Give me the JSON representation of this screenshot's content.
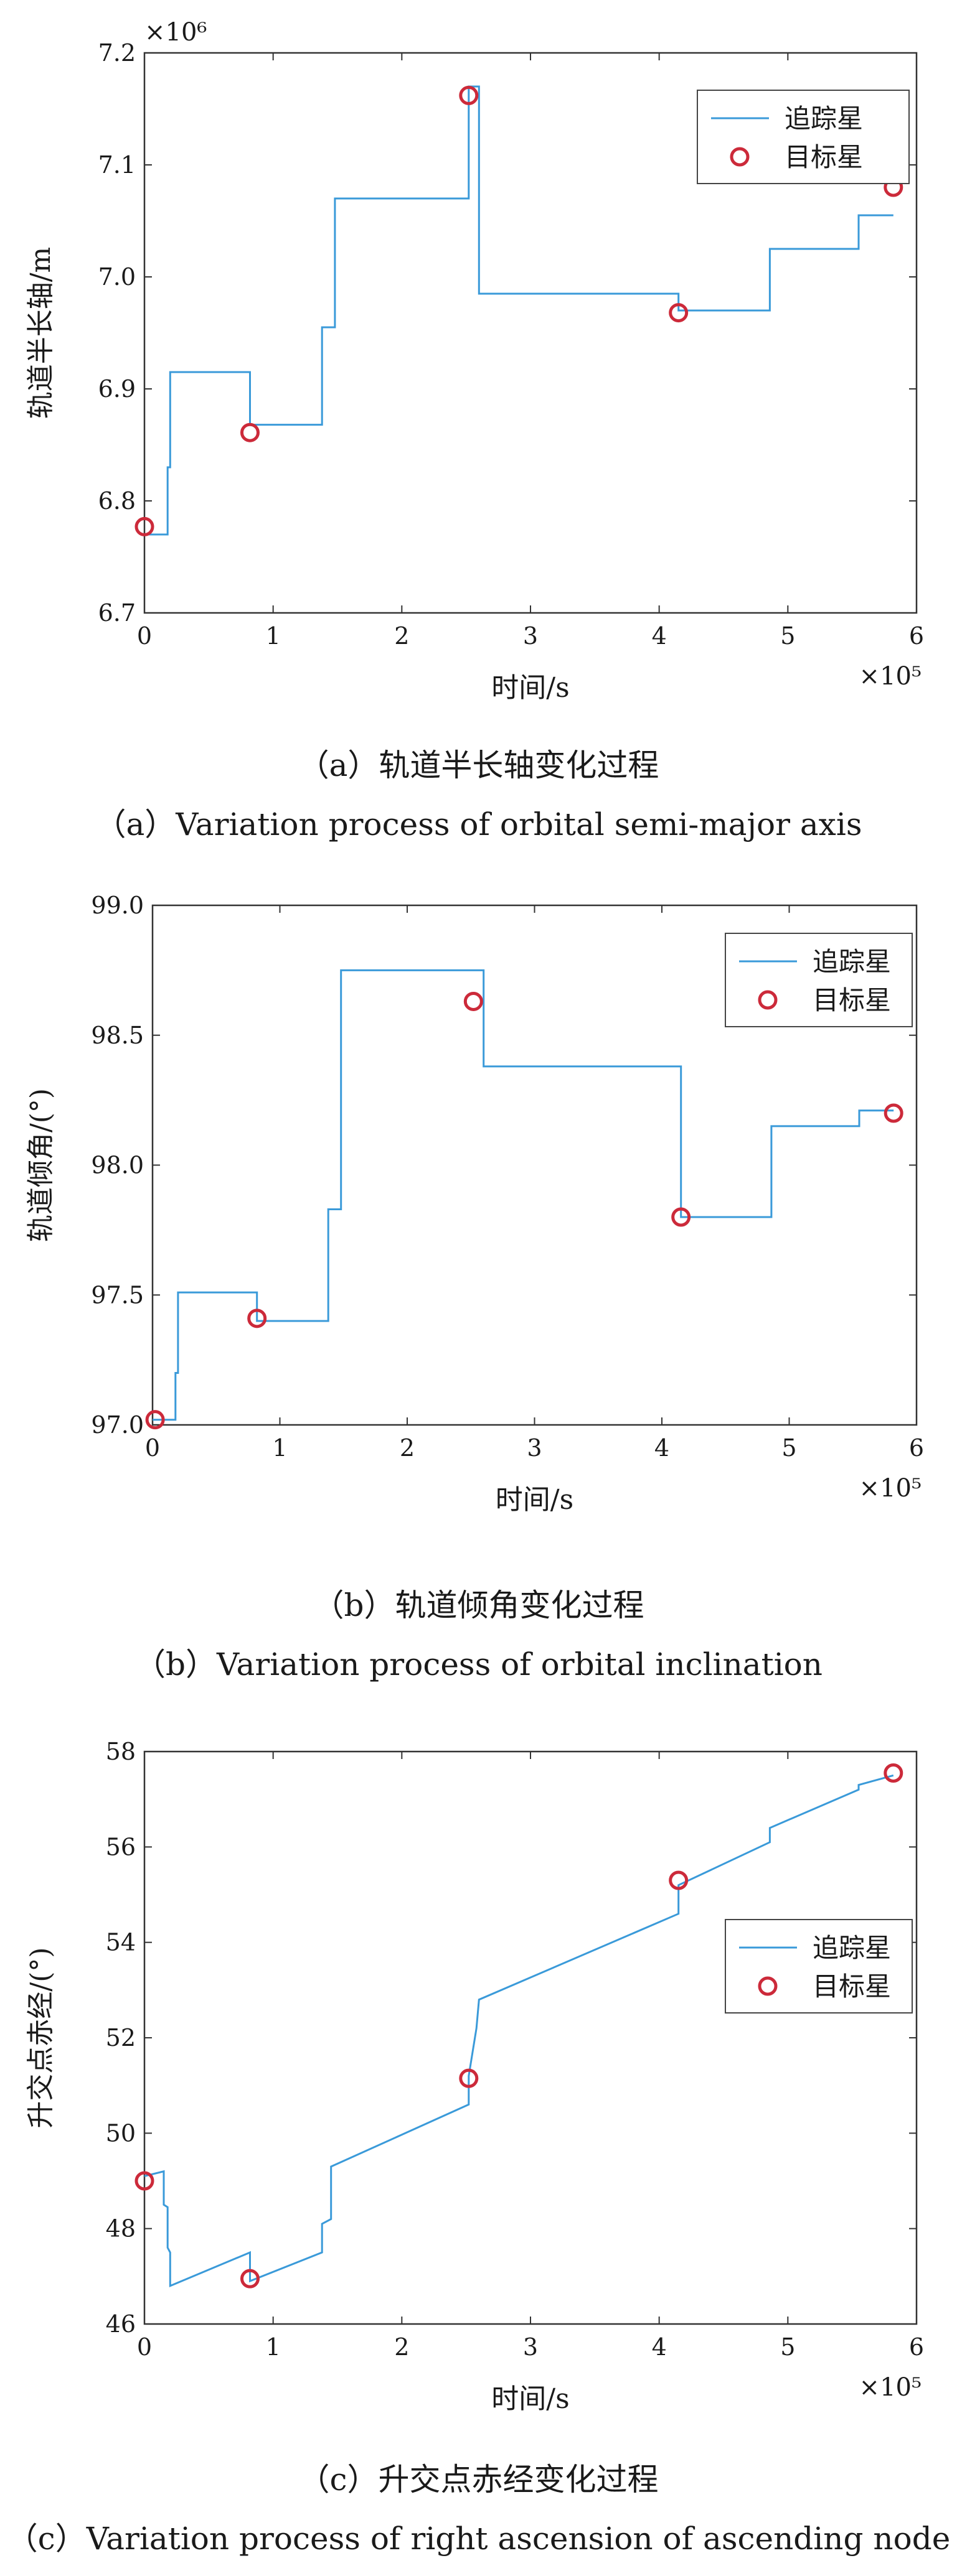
{
  "chart_data": [
    {
      "type": "line",
      "ylabel": "轨道半长轴/m",
      "xlabel": "时间/s",
      "x_exponent": "×10⁵",
      "y_exponent": "×10⁶",
      "xlim": [
        0,
        6
      ],
      "ylim": [
        6.7,
        7.2
      ],
      "xticks": [
        "0",
        "1",
        "2",
        "3",
        "4",
        "5",
        "6"
      ],
      "yticks": [
        "6.7",
        "6.8",
        "6.9",
        "7.0",
        "7.1",
        "7.2"
      ],
      "series": [
        {
          "name": "追踪星",
          "color": "#3a9ad9",
          "style": "line",
          "x": [
            0,
            0.18,
            0.18,
            0.2,
            0.2,
            0.82,
            0.82,
            1.38,
            1.38,
            1.48,
            1.48,
            2.52,
            2.52,
            2.6,
            2.6,
            4.15,
            4.15,
            4.86,
            4.86,
            5.55,
            5.55,
            5.82
          ],
          "y": [
            6.77,
            6.77,
            6.83,
            6.83,
            6.915,
            6.915,
            6.868,
            6.868,
            6.955,
            6.955,
            7.07,
            7.07,
            7.17,
            7.17,
            6.985,
            6.985,
            6.97,
            6.97,
            7.025,
            7.025,
            7.055,
            7.055
          ]
        },
        {
          "name": "目标星",
          "color": "#cc2a3a",
          "style": "marker",
          "x": [
            0,
            0.82,
            2.52,
            4.15,
            5.82
          ],
          "y": [
            6.777,
            6.861,
            7.162,
            6.968,
            7.08
          ]
        }
      ],
      "legend": "top-right",
      "grid": false
    },
    {
      "type": "line",
      "ylabel": "轨道倾角/(°)",
      "xlabel": "时间/s",
      "x_exponent": "×10⁵",
      "xlim": [
        0,
        6
      ],
      "ylim": [
        97.0,
        99.0
      ],
      "xticks": [
        "0",
        "1",
        "2",
        "3",
        "4",
        "5",
        "6"
      ],
      "yticks": [
        "97.0",
        "97.5",
        "98.0",
        "98.5",
        "99.0"
      ],
      "series": [
        {
          "name": "追踪星",
          "color": "#3a9ad9",
          "style": "line",
          "x": [
            0,
            0.18,
            0.18,
            0.2,
            0.2,
            0.82,
            0.82,
            1.38,
            1.38,
            1.48,
            1.48,
            2.6,
            2.6,
            4.15,
            4.15,
            4.86,
            4.86,
            5.55,
            5.55,
            5.82
          ],
          "y": [
            97.02,
            97.02,
            97.2,
            97.2,
            97.51,
            97.51,
            97.4,
            97.4,
            97.83,
            97.83,
            98.75,
            98.75,
            98.38,
            98.38,
            97.8,
            97.8,
            98.15,
            98.15,
            98.21,
            98.21
          ]
        },
        {
          "name": "目标星",
          "color": "#cc2a3a",
          "style": "marker",
          "x": [
            0.02,
            0.82,
            2.52,
            4.15,
            5.82
          ],
          "y": [
            97.02,
            97.41,
            98.63,
            97.8,
            98.2
          ]
        }
      ],
      "legend": "top-right",
      "grid": false
    },
    {
      "type": "line",
      "ylabel": "升交点赤经/(°)",
      "xlabel": "时间/s",
      "x_exponent": "×10⁵",
      "xlim": [
        0,
        6
      ],
      "ylim": [
        46,
        58
      ],
      "xticks": [
        "0",
        "1",
        "2",
        "3",
        "4",
        "5",
        "6"
      ],
      "yticks": [
        "46",
        "48",
        "50",
        "52",
        "54",
        "56",
        "58"
      ],
      "series": [
        {
          "name": "追踪星",
          "color": "#3a9ad9",
          "style": "line",
          "x": [
            0,
            0.15,
            0.15,
            0.18,
            0.18,
            0.2,
            0.2,
            0.82,
            0.82,
            1.38,
            1.38,
            1.45,
            1.45,
            2.52,
            2.52,
            2.58,
            2.6,
            4.15,
            4.15,
            4.86,
            4.86,
            5.55,
            5.55,
            5.82
          ],
          "y": [
            49.1,
            49.2,
            48.5,
            48.45,
            47.6,
            47.5,
            46.8,
            47.5,
            46.9,
            47.5,
            48.1,
            48.2,
            49.3,
            50.6,
            51.2,
            52.2,
            52.8,
            54.6,
            55.2,
            56.1,
            56.4,
            57.2,
            57.3,
            57.5
          ]
        },
        {
          "name": "目标星",
          "color": "#cc2a3a",
          "style": "marker",
          "x": [
            0,
            0.82,
            2.52,
            4.15,
            5.82
          ],
          "y": [
            49.0,
            46.95,
            51.15,
            55.3,
            57.55
          ]
        }
      ],
      "legend": "right",
      "grid": false
    }
  ],
  "captions": [
    {
      "cn": "（a）轨道半长轴变化过程",
      "en": "（a）Variation process of orbital semi-major axis"
    },
    {
      "cn": "（b）轨道倾角变化过程",
      "en": "（b）Variation process of orbital inclination"
    },
    {
      "cn": "（c）升交点赤经变化过程",
      "en": "（c）Variation process of right ascension of ascending node"
    }
  ]
}
